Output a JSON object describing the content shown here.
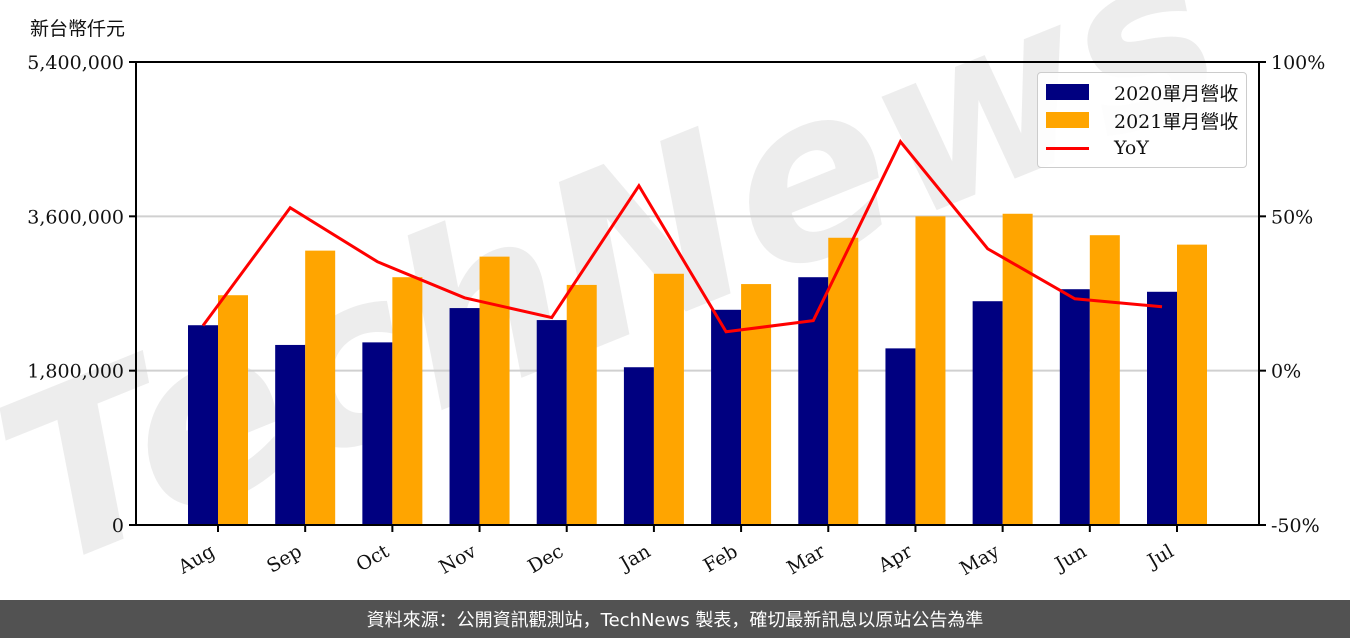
{
  "chart_data": {
    "type": "bar",
    "title": "",
    "ylabel": "新台幣仟元",
    "xlabel": "",
    "categories": [
      "Aug",
      "Sep",
      "Oct",
      "Nov",
      "Dec",
      "Jan",
      "Feb",
      "Mar",
      "Apr",
      "May",
      "Jun",
      "Jul"
    ],
    "series": [
      {
        "name": "2020單月營收",
        "type": "bar",
        "axis": "left",
        "color": "#000080",
        "values": [
          2330000,
          2100000,
          2130000,
          2530000,
          2390000,
          1840000,
          2510000,
          2890000,
          2060000,
          2610000,
          2750000,
          2720000
        ]
      },
      {
        "name": "2021單月營收",
        "type": "bar",
        "axis": "left",
        "color": "#FFA500",
        "values": [
          2680000,
          3200000,
          2890000,
          3130000,
          2800000,
          2930000,
          2810000,
          3350000,
          3600000,
          3630000,
          3380000,
          3270000
        ]
      },
      {
        "name": "YoY",
        "type": "line",
        "axis": "right",
        "color": "#FF0000",
        "unit": "%",
        "values": [
          14.6,
          52.8,
          35.3,
          23.6,
          17.2,
          59.9,
          12.6,
          16.2,
          74.2,
          39.5,
          23.3,
          20.7
        ]
      }
    ],
    "ylim": [
      0,
      5400000
    ],
    "y2lim": [
      -50,
      100
    ],
    "yticks": [
      "0",
      "1,800,000",
      "3,600,000",
      "5,400,000"
    ],
    "y2ticks": [
      "-50%",
      "0%",
      "50%",
      "100%"
    ],
    "grid": "horizontal",
    "legend_position": "upper right",
    "watermark": "TechNews"
  },
  "unit_label": "新台幣仟元",
  "legend": {
    "items": [
      {
        "label": "2020單月營收",
        "color": "#000080",
        "kind": "bar"
      },
      {
        "label": "2021單月營收",
        "color": "#FFA500",
        "kind": "bar"
      },
      {
        "label": "YoY",
        "color": "#FF0000",
        "kind": "line"
      }
    ]
  },
  "footer": {
    "text": "資料來源：公開資訊觀測站，TechNews 製表，確切最新訊息以原站公告為準"
  }
}
